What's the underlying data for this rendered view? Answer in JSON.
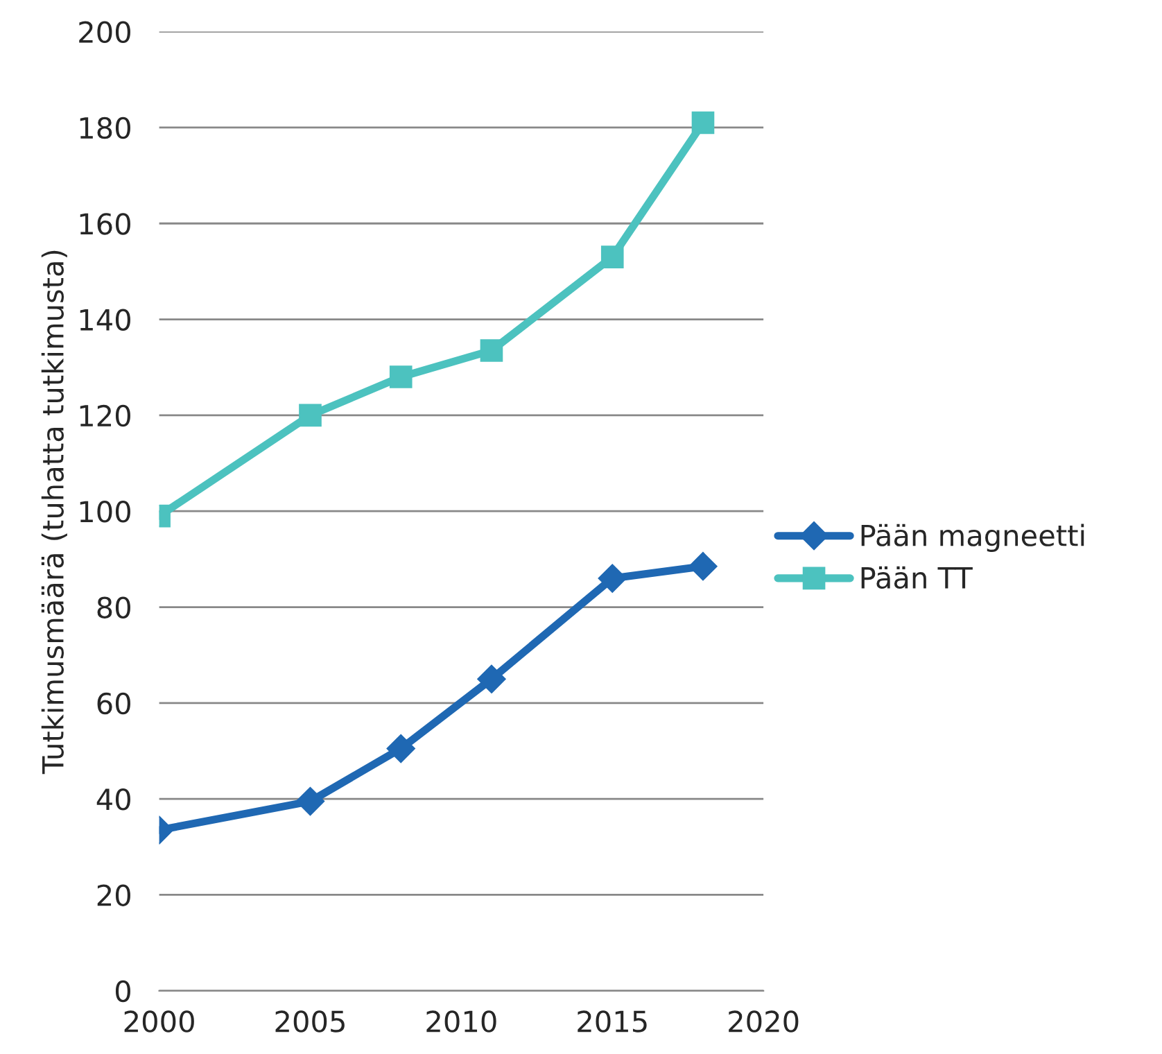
{
  "chart_data": {
    "type": "line",
    "ylabel": "Tutkimusmäärä (tuhatta tutkimusta)",
    "x": [
      2000,
      2005,
      2008,
      2011,
      2015,
      2018
    ],
    "series": [
      {
        "name": "Pään magneetti",
        "color": "#1f68b3",
        "marker": "diamond",
        "values": [
          33.5,
          39.5,
          50.5,
          65,
          86,
          88.5
        ]
      },
      {
        "name": "Pään TT",
        "color": "#4cc2bf",
        "marker": "square",
        "values": [
          99,
          120,
          128,
          133.5,
          153,
          181
        ]
      }
    ],
    "xlim": [
      2000,
      2020
    ],
    "xticks": [
      2000,
      2005,
      2010,
      2015,
      2020
    ],
    "ylim": [
      0,
      200
    ],
    "yticks": [
      0,
      20,
      40,
      60,
      80,
      100,
      120,
      140,
      160,
      180,
      200
    ],
    "grid": "y",
    "legend": "right",
    "line_style": "solid"
  }
}
